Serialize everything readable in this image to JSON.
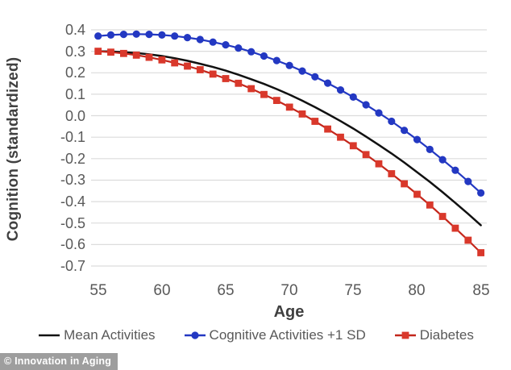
{
  "watermark": {
    "text": "© Innovation in Aging"
  },
  "colors": {
    "background": "#ffffff",
    "gridline": "#dcdcdc",
    "tick_text": "#595959",
    "axis_title_text": "#404040",
    "mean_activities_line": "#111111",
    "cognitive_activities_blue": "#2338c2",
    "diabetes_red": "#d9382b",
    "diabetes_line_red": "#c3271c",
    "watermark_bg": "#9e9e9e",
    "watermark_text": "#ffffff"
  },
  "chart_data": {
    "type": "line",
    "title": "",
    "xlabel": "Age",
    "ylabel": "Cognition (standardized)",
    "xlim": [
      55,
      85
    ],
    "ylim": [
      -0.7,
      0.4
    ],
    "x_ticks": [
      55,
      60,
      65,
      70,
      75,
      80,
      85
    ],
    "y_ticks": [
      "0.4",
      "0.3",
      "0.2",
      "0.1",
      "0.0",
      "-0.1",
      "-0.2",
      "-0.3",
      "-0.4",
      "-0.5",
      "-0.6",
      "-0.7"
    ],
    "grid": "horizontal",
    "legend_position": "bottom",
    "x": [
      55,
      56,
      57,
      58,
      59,
      60,
      61,
      62,
      63,
      64,
      65,
      66,
      67,
      68,
      69,
      70,
      71,
      72,
      73,
      74,
      75,
      76,
      77,
      78,
      79,
      80,
      81,
      82,
      83,
      84,
      85
    ],
    "series": [
      {
        "name": "Mean Activities",
        "marker": "none",
        "color": "#111111",
        "values": [
          0.3,
          0.299,
          0.296,
          0.292,
          0.286,
          0.278,
          0.268,
          0.256,
          0.242,
          0.227,
          0.21,
          0.191,
          0.17,
          0.148,
          0.124,
          0.098,
          0.07,
          0.04,
          0.008,
          -0.025,
          -0.06,
          -0.097,
          -0.136,
          -0.176,
          -0.218,
          -0.263,
          -0.308,
          -0.356,
          -0.406,
          -0.457,
          -0.51
        ]
      },
      {
        "name": "Cognitive Activities +1 SD",
        "marker": "circle",
        "color": "#2338c2",
        "values": [
          0.371,
          0.376,
          0.379,
          0.38,
          0.379,
          0.376,
          0.371,
          0.364,
          0.355,
          0.343,
          0.33,
          0.315,
          0.298,
          0.278,
          0.257,
          0.234,
          0.208,
          0.181,
          0.152,
          0.12,
          0.087,
          0.051,
          0.013,
          -0.026,
          -0.068,
          -0.111,
          -0.157,
          -0.205,
          -0.254,
          -0.306,
          -0.36
        ]
      },
      {
        "name": "Diabetes",
        "marker": "square",
        "color": "#d9382b",
        "line_color": "#c3271c",
        "values": [
          0.3,
          0.296,
          0.29,
          0.282,
          0.272,
          0.26,
          0.246,
          0.231,
          0.214,
          0.194,
          0.173,
          0.151,
          0.126,
          0.099,
          0.071,
          0.04,
          0.008,
          -0.026,
          -0.062,
          -0.1,
          -0.14,
          -0.181,
          -0.224,
          -0.27,
          -0.317,
          -0.366,
          -0.416,
          -0.469,
          -0.524,
          -0.58,
          -0.638
        ]
      }
    ]
  }
}
